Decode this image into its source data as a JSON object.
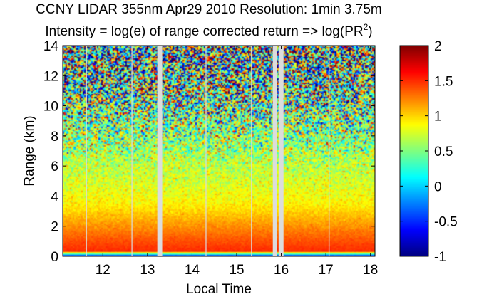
{
  "chart_data": {
    "type": "heatmap",
    "title": "CCNY LIDAR 355nm Apr29 2010 Resolution: 1min 3.75m",
    "subtitle_prefix": "Intensity = log(e) of range corrected return => log(PR",
    "subtitle_sup": "2",
    "subtitle_suffix": ")",
    "xlabel": "Local Time",
    "ylabel": "Range (km)",
    "xlim": [
      11.1,
      18.1
    ],
    "ylim": [
      0,
      14
    ],
    "xticks": [
      12,
      13,
      14,
      15,
      16,
      17,
      18
    ],
    "yticks": [
      0,
      2,
      4,
      6,
      8,
      10,
      12,
      14
    ],
    "colorbar": {
      "label_ticks": [
        "2",
        "1.5",
        "1",
        "0.5",
        "0",
        "-0.5",
        "-1"
      ],
      "tick_values": [
        2,
        1.5,
        1,
        0.5,
        0,
        -0.5,
        -1
      ],
      "range": [
        -1,
        2
      ],
      "colormap": "jet"
    },
    "data_gaps": [
      {
        "start": 13.22,
        "end": 13.33,
        "kind": "wide"
      },
      {
        "start": 15.81,
        "end": 15.9,
        "kind": "wide"
      },
      {
        "start": 15.94,
        "end": 16.05,
        "kind": "wide"
      },
      {
        "start": 11.62,
        "end": 11.64,
        "kind": "thin"
      },
      {
        "start": 12.64,
        "end": 12.66,
        "kind": "thin"
      },
      {
        "start": 14.3,
        "end": 14.32,
        "kind": "thin"
      },
      {
        "start": 15.32,
        "end": 15.34,
        "kind": "thin"
      },
      {
        "start": 17.06,
        "end": 17.08,
        "kind": "thin"
      }
    ],
    "intensity_profile": [
      {
        "range_km": 0.0,
        "value": -1
      },
      {
        "range_km": 0.1,
        "value": 0.2
      },
      {
        "range_km": 0.2,
        "value": 0.4
      },
      {
        "range_km": 0.3,
        "value": 1.5
      },
      {
        "range_km": 0.7,
        "value": 1.45
      },
      {
        "range_km": 1.5,
        "value": 1.3
      },
      {
        "range_km": 2.5,
        "value": 1.1
      },
      {
        "range_km": 3.5,
        "value": 0.9
      },
      {
        "range_km": 5.0,
        "value": 0.75
      },
      {
        "range_km": 6.5,
        "value": 0.65
      },
      {
        "range_km": 8.0,
        "value": 0.55
      },
      {
        "range_km": 10.0,
        "value": 0.45
      },
      {
        "range_km": 12.0,
        "value": 0.4
      },
      {
        "range_km": 14.0,
        "value": 0.35
      }
    ],
    "noise_profile": [
      {
        "range_km": 0.0,
        "value": 0.02
      },
      {
        "range_km": 3.0,
        "value": 0.06
      },
      {
        "range_km": 6.0,
        "value": 0.2
      },
      {
        "range_km": 9.0,
        "value": 0.6
      },
      {
        "range_km": 11.0,
        "value": 0.9
      },
      {
        "range_km": 14.0,
        "value": 1.1
      }
    ]
  }
}
